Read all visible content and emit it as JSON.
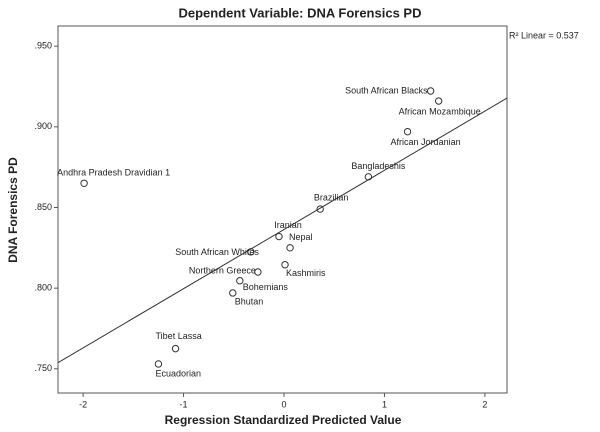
{
  "chart_data": {
    "type": "scatter",
    "title": "Dependent Variable: DNA Forensics PD",
    "x_label": "Regression Standardized Predicted Value",
    "y_label": "DNA Forensics PD",
    "annotation": "R² Linear = 0.537",
    "labels": [
      "South African Blacks",
      "African Mozambique",
      "African Jordanian",
      "Bangladeshis",
      "Brazilian",
      "Iranian",
      "Nepal",
      "South African Whites",
      "Kashmiris",
      "Northern Greece",
      "Bohemians",
      "Bhutan",
      "Andhra Pradesh Dravidian 1",
      "Tibet Lassa",
      "Ecuadorian"
    ],
    "x": [
      1.46,
      1.54,
      1.23,
      0.84,
      0.36,
      -0.05,
      0.06,
      -0.33,
      0.01,
      -0.26,
      -0.44,
      -0.51,
      -1.99,
      -1.08,
      -1.25
    ],
    "y": [
      0.9222,
      0.916,
      0.897,
      0.869,
      0.849,
      0.832,
      0.825,
      0.8225,
      0.8145,
      0.81,
      0.8046,
      0.797,
      0.865,
      0.7625,
      0.753
    ],
    "fit_line": {
      "x": [
        -2.25,
        2.22
      ],
      "y": [
        0.7538,
        0.9178
      ]
    },
    "xlim": [
      -2.25,
      2.22
    ],
    "ylim": [
      0.735,
      0.9625
    ],
    "xticks": [
      -2,
      -1,
      0,
      1,
      2
    ],
    "yticks": [
      {
        "value": 0.75,
        "label": ".750"
      },
      {
        "value": 0.8,
        "label": ".800"
      },
      {
        "value": 0.85,
        "label": ".850"
      },
      {
        "value": 0.9,
        "label": ".900"
      },
      {
        "value": 0.95,
        "label": ".950"
      }
    ]
  }
}
